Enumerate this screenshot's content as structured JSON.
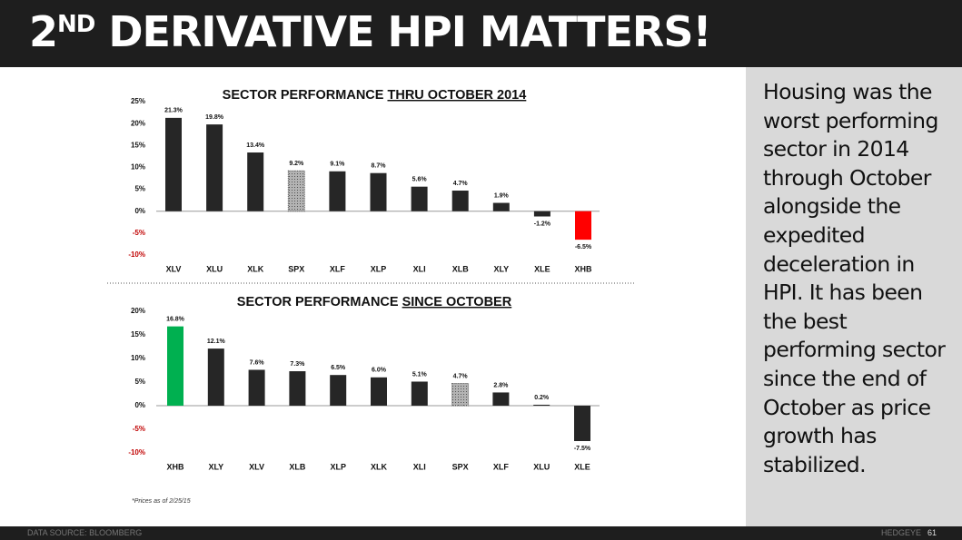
{
  "header": {
    "title_number": "2",
    "title_superscript": "ND",
    "title_rest": " DERIVATIVE HPI MATTERS!"
  },
  "sidebar": {
    "text": "Housing was the worst performing sector in 2014 through October alongside the expedited deceleration in HPI.  It has been the best performing sector since the end of October as price growth has stabilized."
  },
  "footnote": "*Prices as of 2/25/15",
  "footer": {
    "source": "DATA SOURCE:  BLOOMBERG",
    "brand": "HEDGEYE",
    "page": "61"
  },
  "chart_data": [
    {
      "type": "bar",
      "title": "SECTOR PERFORMANCE ",
      "title_underlined": "THRU OCTOBER 2014",
      "categories": [
        "XLV",
        "XLU",
        "XLK",
        "SPX",
        "XLF",
        "XLP",
        "XLI",
        "XLB",
        "XLY",
        "XLE",
        "XHB"
      ],
      "values": [
        21.3,
        19.8,
        13.4,
        9.2,
        9.1,
        8.7,
        5.6,
        4.7,
        1.9,
        -1.2,
        -6.5
      ],
      "value_labels": [
        "21.3%",
        "19.8%",
        "13.4%",
        "9.2%",
        "9.1%",
        "8.7%",
        "5.6%",
        "4.7%",
        "1.9%",
        "-1.2%",
        "-6.5%"
      ],
      "colors": [
        "#262626",
        "#262626",
        "#262626",
        "#a6a6a6",
        "#262626",
        "#262626",
        "#262626",
        "#262626",
        "#262626",
        "#262626",
        "#ff0000"
      ],
      "ylim": [
        -10,
        25
      ],
      "yticks": [
        {
          "value": -10,
          "label": "-10%"
        },
        {
          "value": -5,
          "label": "-5%"
        },
        {
          "value": 0,
          "label": "0%"
        },
        {
          "value": 5,
          "label": "5%"
        },
        {
          "value": 10,
          "label": "10%"
        },
        {
          "value": 15,
          "label": "15%"
        },
        {
          "value": 20,
          "label": "20%"
        },
        {
          "value": 25,
          "label": "25%"
        }
      ]
    },
    {
      "type": "bar",
      "title": "SECTOR PERFORMANCE ",
      "title_underlined": "SINCE OCTOBER",
      "categories": [
        "XHB",
        "XLY",
        "XLV",
        "XLB",
        "XLP",
        "XLK",
        "XLI",
        "SPX",
        "XLF",
        "XLU",
        "XLE"
      ],
      "values": [
        16.8,
        12.1,
        7.6,
        7.3,
        6.5,
        6.0,
        5.1,
        4.7,
        2.8,
        0.2,
        -7.5
      ],
      "value_labels": [
        "16.8%",
        "12.1%",
        "7.6%",
        "7.3%",
        "6.5%",
        "6.0%",
        "5.1%",
        "4.7%",
        "2.8%",
        "0.2%",
        "-7.5%"
      ],
      "colors": [
        "#00b050",
        "#262626",
        "#262626",
        "#262626",
        "#262626",
        "#262626",
        "#262626",
        "#a6a6a6",
        "#262626",
        "#262626",
        "#262626"
      ],
      "ylim": [
        -10,
        20
      ],
      "yticks": [
        {
          "value": -10,
          "label": "-10%"
        },
        {
          "value": -5,
          "label": "-5%"
        },
        {
          "value": 0,
          "label": "0%"
        },
        {
          "value": 5,
          "label": "5%"
        },
        {
          "value": 10,
          "label": "10%"
        },
        {
          "value": 15,
          "label": "15%"
        },
        {
          "value": 20,
          "label": "20%"
        }
      ]
    }
  ]
}
